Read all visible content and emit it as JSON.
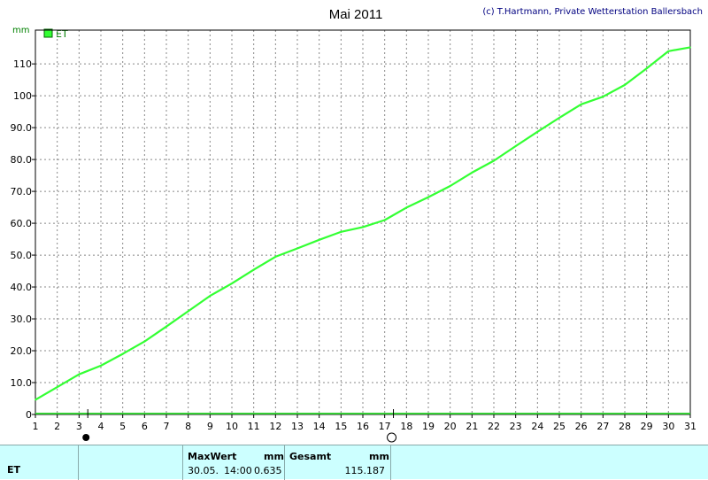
{
  "chart_data": {
    "type": "line",
    "title": "Mai 2011",
    "credit": "(c) T.Hartmann, Private Wetterstation Ballersbach",
    "ylabel": "mm",
    "ylim": [
      0,
      115
    ],
    "yticks": [
      0,
      10,
      20,
      30,
      40,
      50,
      60,
      70,
      80,
      90,
      100,
      110
    ],
    "ytick_labels": [
      "0",
      "10.0",
      "20.0",
      "30.0",
      "40.0",
      "50.0",
      "60.0",
      "70.0",
      "80.0",
      "90.0",
      "100",
      "110"
    ],
    "xlim": [
      1,
      31
    ],
    "x_tick_labels": [
      "1",
      "2",
      "3",
      "4",
      "5",
      "6",
      "7",
      "8",
      "9",
      "10",
      "11",
      "12",
      "13",
      "14",
      "15",
      "16",
      "17",
      "18",
      "19",
      "20",
      "21",
      "22",
      "23",
      "24",
      "25",
      "26",
      "27",
      "28",
      "29",
      "30",
      "31"
    ],
    "grid": true,
    "legend_position": "top-left",
    "series": [
      {
        "name": "ET",
        "color": "#33ff33",
        "x": [
          1,
          2,
          3,
          4,
          5,
          6,
          7,
          8,
          9,
          10,
          11,
          12,
          13,
          14,
          15,
          16,
          17,
          18,
          19,
          20,
          21,
          22,
          23,
          24,
          25,
          26,
          27,
          28,
          29,
          30,
          31
        ],
        "values": [
          4.6,
          8.6,
          12.6,
          15.3,
          19.0,
          22.9,
          27.6,
          32.4,
          37.2,
          41.1,
          45.4,
          49.5,
          52.1,
          54.8,
          57.3,
          58.8,
          61.0,
          64.9,
          68.2,
          71.7,
          75.9,
          79.6,
          84.2,
          88.7,
          93.1,
          97.3,
          99.7,
          103.4,
          108.6,
          114.0,
          115.2
        ]
      }
    ],
    "annotations": {
      "full_moon_day": 3.4,
      "new_moon_day": 17.4,
      "full_moon_icon": "filled-moon-icon",
      "new_moon_icon": "empty-moon-icon"
    }
  },
  "footer": {
    "series_name": "ET",
    "max_header": "MaxWert",
    "max_unit": "mm",
    "max_date": "30.05.",
    "max_time": "14:00",
    "max_value": "0.635",
    "total_header": "Gesamt",
    "total_unit": "mm",
    "total_value": "115.187"
  }
}
